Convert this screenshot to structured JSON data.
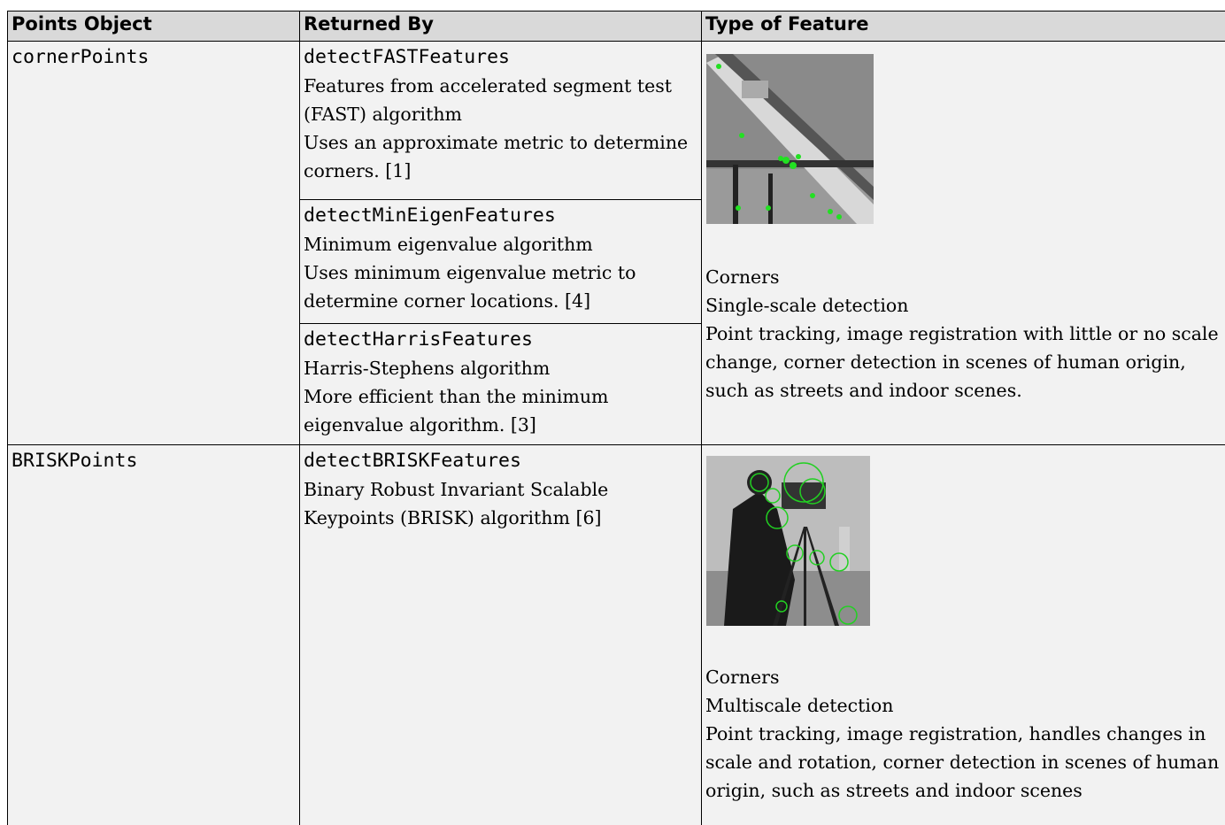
{
  "table": {
    "header": [
      "Points Object",
      "Returned By",
      "Type of Feature"
    ],
    "rows": [
      {
        "object": "cornerPoints",
        "methods": [
          {
            "name": "detectFASTFeatures",
            "lines": [
              "Features from accelerated segment test (FAST) algorithm",
              "Uses an approximate metric to determine corners. [1]"
            ]
          },
          {
            "name": "detectMinEigenFeatures",
            "lines": [
              "Minimum eigenvalue algorithm",
              "Uses minimum eigenvalue metric to determine corner locations. [4]"
            ]
          },
          {
            "name": "detectHarrisFeatures",
            "lines": [
              "Harris-Stephens algorithm",
              "More efficient than the minimum eigenvalue algorithm. [3]"
            ]
          }
        ],
        "feature": [
          "Corners",
          "Single-scale detection",
          "Point tracking, image registration with little or no scale change, corner detection in scenes of human origin, such as streets and indoor scenes."
        ]
      },
      {
        "object": "BRISKPoints",
        "methods": [
          {
            "name": "detectBRISKFeatures",
            "lines": [
              "Binary Robust Invariant Scalable Keypoints (BRISK) algorithm [6]"
            ]
          }
        ],
        "feature": [
          "Corners",
          "Multiscale detection",
          "Point tracking, image registration, handles changes in scale and rotation, corner detection in scenes of human origin, such as streets and indoor scenes"
        ]
      }
    ]
  }
}
